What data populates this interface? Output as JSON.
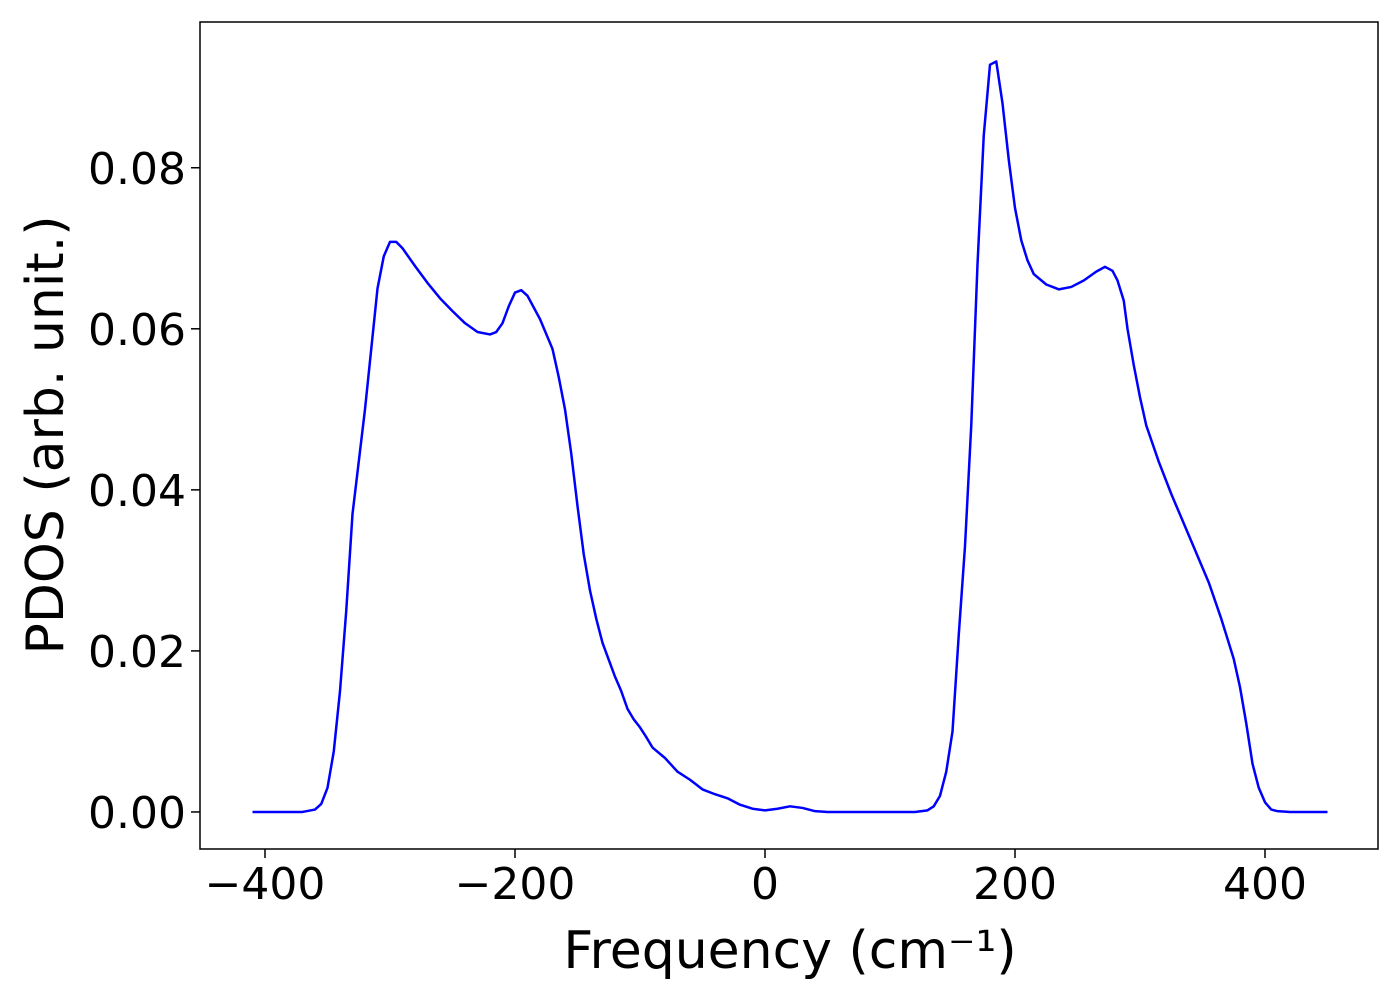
{
  "chart_data": {
    "type": "line",
    "xlabel": "Frequency (cm⁻¹)",
    "ylabel": "PDOS (arb. unit.)",
    "x": [
      -410,
      -370,
      -360,
      -355,
      -350,
      -345,
      -340,
      -335,
      -330,
      -320,
      -315,
      -310,
      -305,
      -300,
      -295,
      -290,
      -280,
      -270,
      -260,
      -250,
      -240,
      -230,
      -220,
      -215,
      -210,
      -205,
      -200,
      -195,
      -190,
      -180,
      -170,
      -165,
      -160,
      -155,
      -150,
      -145,
      -140,
      -135,
      -130,
      -120,
      -115,
      -110,
      -105,
      -100,
      -95,
      -90,
      -80,
      -70,
      -60,
      -50,
      -40,
      -30,
      -20,
      -10,
      0,
      10,
      20,
      30,
      40,
      50,
      120,
      130,
      135,
      140,
      145,
      150,
      155,
      160,
      165,
      170,
      175,
      180,
      185,
      190,
      195,
      200,
      205,
      210,
      215,
      225,
      235,
      245,
      255,
      265,
      272,
      278,
      282,
      287,
      290,
      295,
      300,
      305,
      315,
      325,
      340,
      355,
      365,
      375,
      380,
      385,
      390,
      395,
      400,
      405,
      410,
      420,
      450
    ],
    "series": [
      {
        "color": "#0000ff",
        "values": [
          0,
          0,
          0.0003,
          0.001,
          0.003,
          0.0075,
          0.015,
          0.025,
          0.037,
          0.05,
          0.0575,
          0.065,
          0.069,
          0.0708,
          0.0708,
          0.07,
          0.0678,
          0.0657,
          0.0638,
          0.0622,
          0.0607,
          0.0596,
          0.0593,
          0.0596,
          0.0607,
          0.0628,
          0.0645,
          0.0648,
          0.0641,
          0.0612,
          0.0575,
          0.054,
          0.05,
          0.0445,
          0.038,
          0.032,
          0.0275,
          0.024,
          0.021,
          0.0168,
          0.015,
          0.0128,
          0.0115,
          0.0105,
          0.0093,
          0.008,
          0.0067,
          0.005,
          0.004,
          0.0028,
          0.0022,
          0.0017,
          0.0009,
          0.0004,
          0.0002,
          0.0004,
          0.0007,
          0.0005,
          0.0001,
          0,
          0,
          0.0002,
          0.0007,
          0.002,
          0.005,
          0.01,
          0.022,
          0.033,
          0.048,
          0.068,
          0.084,
          0.0928,
          0.0932,
          0.088,
          0.081,
          0.075,
          0.071,
          0.0685,
          0.0668,
          0.0655,
          0.0649,
          0.0652,
          0.066,
          0.0671,
          0.0677,
          0.0672,
          0.066,
          0.0635,
          0.06,
          0.0555,
          0.0515,
          0.048,
          0.0435,
          0.0395,
          0.034,
          0.0285,
          0.024,
          0.019,
          0.0155,
          0.011,
          0.006,
          0.003,
          0.0012,
          0.0003,
          0.0001,
          0,
          0
        ]
      }
    ],
    "xlim": [
      -452,
      490.4
    ],
    "ylim": [
      -0.0046,
      0.0981
    ],
    "xticks": [
      {
        "value": -400,
        "label": "−400"
      },
      {
        "value": -200,
        "label": "−200"
      },
      0,
      200,
      400
    ],
    "yticks": [
      {
        "value": 0,
        "label": "0.00"
      },
      0.02,
      0.04,
      0.06,
      0.08
    ]
  }
}
